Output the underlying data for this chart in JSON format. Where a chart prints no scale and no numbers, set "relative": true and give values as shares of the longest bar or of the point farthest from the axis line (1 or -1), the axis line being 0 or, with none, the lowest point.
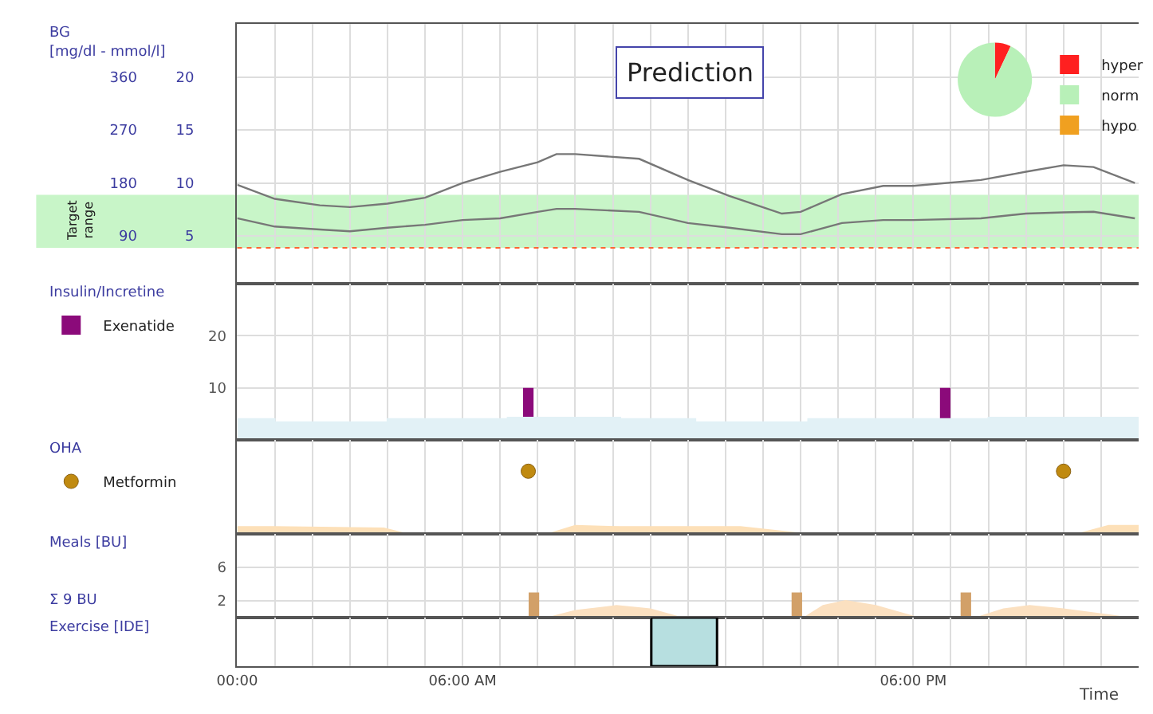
{
  "chart_data": [
    {
      "type": "line",
      "ylabel": "BG",
      "annotations": [
        "[mg/dl - mmol/l]",
        "Prediction"
      ],
      "xlim": [
        0,
        24
      ],
      "xticks": [
        0,
        1,
        2,
        3,
        4,
        5,
        6,
        7,
        8,
        9,
        10,
        11,
        12,
        13,
        14,
        15,
        16,
        17,
        18,
        19,
        20,
        21,
        22,
        23
      ],
      "ylim": [
        9,
        450
      ],
      "yticks": [
        90,
        180,
        270,
        360
      ],
      "y2lim": [
        0.5,
        25
      ],
      "y2ticks": [
        5,
        10,
        15,
        20
      ],
      "grid": true,
      "tick_labels": "y",
      "bands": [
        {
          "axis": "y",
          "from": 70,
          "to": 160,
          "label": "Target range",
          "color": "#c8f5c8"
        }
      ],
      "ref_lines": [
        {
          "axis": "y",
          "value": 70,
          "color": "#ff6633",
          "line_style": "dotted"
        }
      ],
      "series": [
        {
          "color": "#777777",
          "x": [
            0,
            1,
            2.2,
            3,
            4,
            5,
            6,
            7,
            8,
            8.5,
            9,
            10.7,
            12,
            13.1,
            14.5,
            15,
            16.1,
            17.2,
            18,
            19.8,
            21,
            22,
            22.8,
            23.9
          ],
          "values": [
            177,
            153,
            142,
            139,
            145,
            155,
            180,
            199,
            215,
            229,
            229,
            221,
            185,
            158,
            128,
            131,
            161,
            175,
            175,
            185,
            199,
            210,
            207,
            180
          ]
        },
        {
          "color": "#777777",
          "x": [
            0,
            1,
            2.2,
            3,
            4,
            5,
            6,
            7,
            8,
            8.5,
            9,
            10.7,
            12,
            13.1,
            14.5,
            15,
            16.1,
            17.2,
            18,
            19.8,
            21,
            22,
            22.8,
            23.9
          ],
          "values": [
            120,
            106,
            101,
            98,
            104,
            109,
            117,
            120,
            131,
            136,
            136,
            131,
            112,
            104,
            93,
            93,
            112,
            117,
            117,
            120,
            128,
            130,
            131,
            120
          ]
        }
      ]
    },
    {
      "type": "pie",
      "categories": [
        "hyper",
        "norm",
        "hypo"
      ],
      "values": [
        7,
        93,
        0
      ],
      "colors": [
        "#ff2020",
        "#b8f0b8",
        "#f0a020"
      ],
      "legend": "right"
    },
    {
      "type": "bar",
      "ylabel": "Insulin/Incretine",
      "xlim": [
        0,
        24
      ],
      "xticks": [
        0,
        1,
        2,
        3,
        4,
        5,
        6,
        7,
        8,
        9,
        10,
        11,
        12,
        13,
        14,
        15,
        16,
        17,
        18,
        19,
        20,
        21,
        22,
        23
      ],
      "ylim": [
        0,
        30
      ],
      "yticks": [
        10,
        20
      ],
      "grid": true,
      "tick_labels": "y",
      "legend": "left",
      "series": [
        {
          "type": "area",
          "color": "#e2f1f6",
          "x": [
            0,
            1,
            1,
            4,
            4,
            7.2,
            7.2,
            10.2,
            10.2,
            12.2,
            12.2,
            15.2,
            15.2,
            20,
            20,
            24
          ],
          "values": [
            4.0,
            4.0,
            3.4,
            3.4,
            4.0,
            4.0,
            4.3,
            4.3,
            4.0,
            4.0,
            3.4,
            3.4,
            4.0,
            4.0,
            4.3,
            4.3
          ]
        },
        {
          "name": "Exenatide",
          "color": "#8b0a7a",
          "x": [
            7.75,
            18.85
          ],
          "values": [
            10,
            10
          ]
        }
      ]
    },
    {
      "type": "scatter",
      "ylabel": "OHA",
      "relative": true,
      "xlim": [
        0,
        24
      ],
      "xticks": [
        0,
        1,
        2,
        3,
        4,
        5,
        6,
        7,
        8,
        9,
        10,
        11,
        12,
        13,
        14,
        15,
        16,
        17,
        18,
        19,
        20,
        21,
        22,
        23
      ],
      "grid": "x",
      "tick_labels": false,
      "legend": "left",
      "series": [
        {
          "type": "area",
          "color": "#fde0b8",
          "x": [
            0,
            1,
            3.9,
            4.5,
            8.3,
            9,
            10.2,
            13.4,
            15.1,
            22.4,
            23.2,
            24
          ],
          "values": [
            0.11,
            0.11,
            0.09,
            0,
            0,
            0.13,
            0.11,
            0.11,
            0,
            0,
            0.13,
            0.13
          ]
        },
        {
          "name": "Metformin",
          "color": "#c08a10",
          "marker": "circle",
          "x": [
            7.75,
            22.0
          ],
          "values": [
            1,
            1
          ]
        }
      ]
    },
    {
      "type": "bar",
      "ylabel": "Meals [BU]",
      "annotations": [
        "Σ 9 BU"
      ],
      "xlim": [
        0,
        24
      ],
      "xticks": [
        0,
        1,
        2,
        3,
        4,
        5,
        6,
        7,
        8,
        9,
        10,
        11,
        12,
        13,
        14,
        15,
        16,
        17,
        18,
        19,
        20,
        21,
        22,
        23
      ],
      "ylim": [
        0,
        10
      ],
      "yticks": [
        2,
        6
      ],
      "grid": true,
      "tick_labels": "y",
      "series": [
        {
          "type": "area",
          "color": "#fbe0c0",
          "x": [
            8.3,
            9,
            10.1,
            11,
            11.8,
            15.1,
            15.6,
            16.2,
            17,
            18.1,
            19.7,
            20.4,
            21.1,
            22,
            23.7
          ],
          "values": [
            0,
            0.8,
            1.4,
            1.0,
            0,
            0,
            1.4,
            2.0,
            1.4,
            0,
            0,
            1.0,
            1.4,
            1.0,
            0
          ]
        },
        {
          "color": "#d2a068",
          "x": [
            7.9,
            14.9,
            19.4
          ],
          "values": [
            3,
            3,
            3
          ]
        }
      ]
    },
    {
      "type": "bar",
      "ylabel": "Exercise [IDE]",
      "xlabel": "Time",
      "relative": true,
      "xlim": [
        0,
        24
      ],
      "xticks": [
        {
          "value": 0,
          "label": "00:00"
        },
        {
          "value": 1,
          "label": null
        },
        {
          "value": 2,
          "label": null
        },
        {
          "value": 3,
          "label": null
        },
        {
          "value": 4,
          "label": null
        },
        {
          "value": 5,
          "label": null
        },
        {
          "value": 6,
          "label": "06:00 AM"
        },
        {
          "value": 7,
          "label": null
        },
        {
          "value": 8,
          "label": null
        },
        {
          "value": 9,
          "label": null
        },
        {
          "value": 10,
          "label": null
        },
        {
          "value": 11,
          "label": null
        },
        {
          "value": 13,
          "label": null
        },
        {
          "value": 14,
          "label": null
        },
        {
          "value": 15,
          "label": null
        },
        {
          "value": 16,
          "label": null
        },
        {
          "value": 17,
          "label": null
        },
        {
          "value": 18,
          "label": "06:00 PM"
        },
        {
          "value": 19,
          "label": null
        },
        {
          "value": 20,
          "label": null
        },
        {
          "value": 21,
          "label": null
        },
        {
          "value": 22,
          "label": null
        },
        {
          "value": 23,
          "label": null
        }
      ],
      "grid": "x",
      "tick_labels": "x",
      "series": [
        {
          "color": "#b7dfe0",
          "x": [
            11.9
          ],
          "values": [
            1
          ]
        }
      ]
    }
  ]
}
